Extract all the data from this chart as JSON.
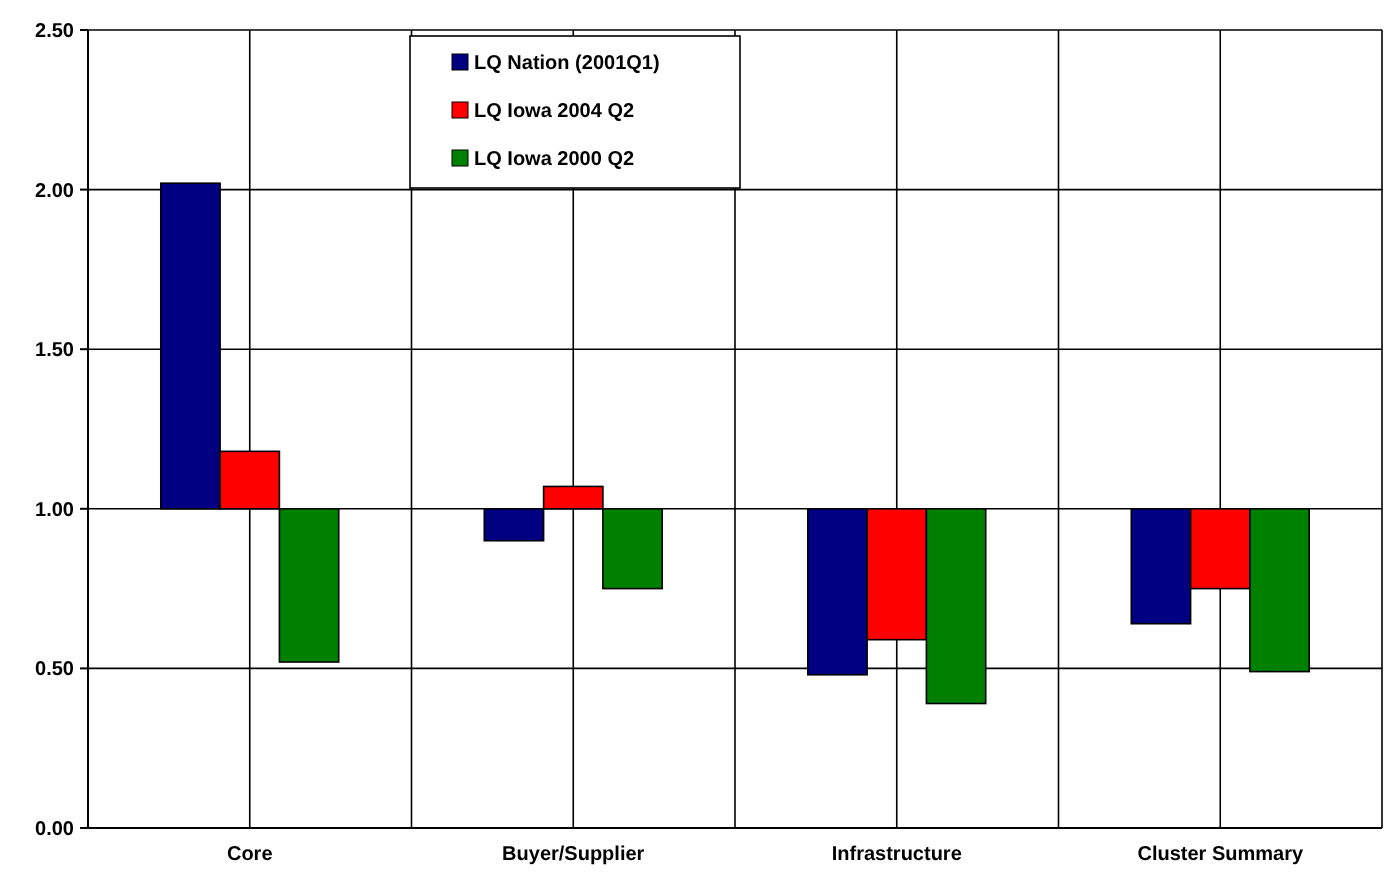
{
  "chart_data": {
    "type": "bar",
    "categories": [
      "Core",
      "Buyer/Supplier",
      "Infrastructure",
      "Cluster Summary"
    ],
    "series": [
      {
        "name": "LQ Nation (2001Q1)",
        "color": "#000080",
        "values": [
          1.02,
          -0.1,
          -0.52,
          -0.36
        ],
        "base": [
          1,
          1,
          1,
          1
        ]
      },
      {
        "name": "LQ Iowa 2004 Q2",
        "color": "#ff0000",
        "values": [
          0.18,
          0.07,
          -0.41,
          -0.25
        ],
        "base": [
          1,
          1,
          1,
          1
        ]
      },
      {
        "name": "LQ Iowa 2000 Q2",
        "color": "#008000",
        "values": [
          -0.48,
          -0.25,
          -0.61,
          -0.51
        ],
        "base": [
          1,
          1,
          1,
          1
        ]
      }
    ],
    "ylim": [
      0,
      2.5
    ],
    "yticks": [
      {
        "value": 0,
        "label": "0.00"
      },
      {
        "value": 0.5,
        "label": "0.50"
      },
      {
        "value": 1,
        "label": "1.00"
      },
      {
        "value": 1.5,
        "label": "1.50"
      },
      {
        "value": 2,
        "label": "2.00"
      },
      {
        "value": 2.5,
        "label": "2.50"
      }
    ],
    "grid": true,
    "legend": "top"
  }
}
